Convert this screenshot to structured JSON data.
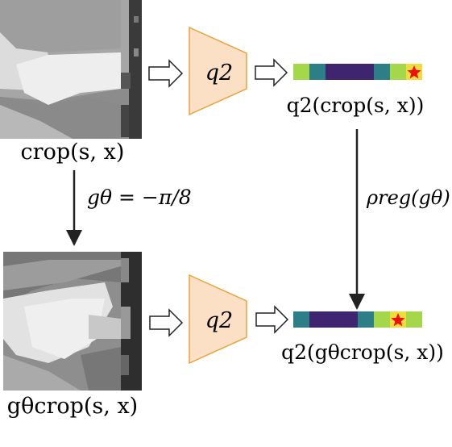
{
  "top": {
    "image_label": "crop(s, x)",
    "encoder_label": "q2",
    "output_label": "q2(crop(s, x))",
    "cells": [
      "#a4d84a",
      "#2c7f86",
      "#3f2470",
      "#3f2470",
      "#3f2470",
      "#2c7f86",
      "#a4d84a",
      "#f0dc3c"
    ],
    "star_index": 7
  },
  "bottom": {
    "image_label": "gθcrop(s, x)",
    "encoder_label": "q2",
    "output_label": "q2(gθcrop(s, x))",
    "cells": [
      "#2c7f86",
      "#3f2470",
      "#3f2470",
      "#3f2470",
      "#2c7f86",
      "#a4d84a",
      "#f0dc3c",
      "#a4d84a"
    ],
    "star_index": 6
  },
  "left_arrow_label": "gθ = −π/8",
  "right_arrow_label": "ρreg(gθ)",
  "colors": {
    "encoder_fill": "#fbe0c6",
    "encoder_stroke": "#e8a33c",
    "star": "#ee1111",
    "arrow": "#222222"
  }
}
